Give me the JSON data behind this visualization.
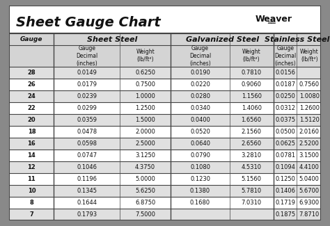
{
  "title": "Sheet Gauge Chart",
  "bg_outer": "#898989",
  "bg_white": "#ffffff",
  "bg_header": "#d4d4d4",
  "bg_row_shaded": "#e0e0e0",
  "bg_row_white": "#f8f8f8",
  "border_dark": "#444444",
  "border_mid": "#888888",
  "text_dark": "#111111",
  "gauges": [
    28,
    26,
    24,
    22,
    20,
    18,
    16,
    14,
    12,
    11,
    10,
    8,
    7
  ],
  "sheet_steel_dec": [
    "0.0149",
    "0.0179",
    "0.0239",
    "0.0299",
    "0.0359",
    "0.0478",
    "0.0598",
    "0.0747",
    "0.1046",
    "0.1196",
    "0.1345",
    "0.1644",
    "0.1793"
  ],
  "sheet_steel_wt": [
    "0.6250",
    "0.7500",
    "1.0000",
    "1.2500",
    "1.5000",
    "2.0000",
    "2.5000",
    "3.1250",
    "4.3750",
    "5.0000",
    "5.6250",
    "6.8750",
    "7.5000"
  ],
  "galv_dec": [
    "0.0190",
    "0.0220",
    "0.0280",
    "0.0340",
    "0.0400",
    "0.0520",
    "0.0640",
    "0.0790",
    "0.1080",
    "0.1230",
    "0.1380",
    "0.1680",
    ""
  ],
  "galv_wt": [
    "0.7810",
    "0.9060",
    "1.1560",
    "1.4060",
    "1.6560",
    "2.1560",
    "2.6560",
    "3.2810",
    "4.5310",
    "5.1560",
    "5.7810",
    "7.0310",
    ""
  ],
  "ss_dec": [
    "0.0156",
    "0.0187",
    "0.0250",
    "0.0312",
    "0.0375",
    "0.0500",
    "0.0625",
    "0.0781",
    "0.1094",
    "0.1250",
    "0.1406",
    "0.1719",
    "0.1875"
  ],
  "ss_wt": [
    "",
    "0.7560",
    "1.0080",
    "1.2600",
    "1.5120",
    "2.0160",
    "2.5200",
    "3.1500",
    "4.4100",
    "5.0400",
    "5.6700",
    "6.9300",
    "7.8710"
  ]
}
